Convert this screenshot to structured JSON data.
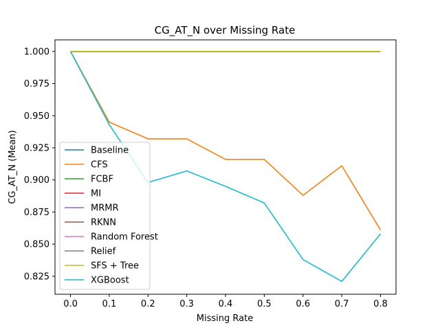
{
  "chart_data": {
    "type": "line",
    "title": "CG_AT_N over Missing Rate",
    "xlabel": "Missing Rate",
    "ylabel": "CG_AT_N (Mean)",
    "xlim": [
      -0.04,
      0.84
    ],
    "ylim": [
      0.811,
      1.009
    ],
    "x_ticks": [
      "0.0",
      "0.1",
      "0.2",
      "0.3",
      "0.4",
      "0.5",
      "0.6",
      "0.7",
      "0.8"
    ],
    "x_tick_values": [
      0.0,
      0.1,
      0.2,
      0.3,
      0.4,
      0.5,
      0.6,
      0.7,
      0.8
    ],
    "y_ticks": [
      "0.825",
      "0.850",
      "0.875",
      "0.900",
      "0.925",
      "0.950",
      "0.975",
      "1.000"
    ],
    "y_tick_values": [
      0.825,
      0.85,
      0.875,
      0.9,
      0.925,
      0.95,
      0.975,
      1.0
    ],
    "legend_position": "lower-left",
    "grid": false,
    "x": [
      0.0,
      0.1,
      0.2,
      0.3,
      0.4,
      0.5,
      0.6,
      0.7,
      0.8
    ],
    "series": [
      {
        "name": "Baseline",
        "color": "#1f77b4",
        "values": [
          1.0,
          1.0,
          1.0,
          1.0,
          1.0,
          1.0,
          1.0,
          1.0,
          1.0
        ]
      },
      {
        "name": "CFS",
        "color": "#ff7f0e",
        "values": [
          1.0,
          0.945,
          0.932,
          0.932,
          0.916,
          0.916,
          0.888,
          0.911,
          0.861
        ]
      },
      {
        "name": "FCBF",
        "color": "#2ca02c",
        "values": [
          1.0,
          1.0,
          1.0,
          1.0,
          1.0,
          1.0,
          1.0,
          1.0,
          1.0
        ]
      },
      {
        "name": "MI",
        "color": "#d62728",
        "values": [
          1.0,
          1.0,
          1.0,
          1.0,
          1.0,
          1.0,
          1.0,
          1.0,
          1.0
        ]
      },
      {
        "name": "MRMR",
        "color": "#9467bd",
        "values": [
          1.0,
          1.0,
          1.0,
          1.0,
          1.0,
          1.0,
          1.0,
          1.0,
          1.0
        ]
      },
      {
        "name": "RKNN",
        "color": "#8c564b",
        "values": [
          1.0,
          1.0,
          1.0,
          1.0,
          1.0,
          1.0,
          1.0,
          1.0,
          1.0
        ]
      },
      {
        "name": "Random Forest",
        "color": "#e377c2",
        "values": [
          1.0,
          1.0,
          1.0,
          1.0,
          1.0,
          1.0,
          1.0,
          1.0,
          1.0
        ]
      },
      {
        "name": "Relief",
        "color": "#7f7f7f",
        "values": [
          1.0,
          1.0,
          1.0,
          1.0,
          1.0,
          1.0,
          1.0,
          1.0,
          1.0
        ]
      },
      {
        "name": "SFS + Tree",
        "color": "#bcbd22",
        "values": [
          1.0,
          1.0,
          1.0,
          1.0,
          1.0,
          1.0,
          1.0,
          1.0,
          1.0
        ]
      },
      {
        "name": "XGBoost",
        "color": "#17becf",
        "values": [
          1.0,
          0.943,
          0.898,
          0.907,
          0.895,
          0.882,
          0.838,
          0.821,
          0.858
        ]
      }
    ]
  }
}
